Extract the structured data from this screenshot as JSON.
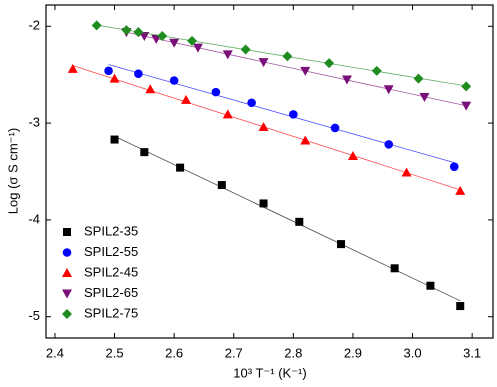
{
  "chart_data": {
    "type": "scatter",
    "xlabel": "10³ T⁻¹ (K⁻¹)",
    "ylabel": "Log (σ S cm⁻¹)",
    "xlim": [
      2.385,
      3.135
    ],
    "xticks": [
      2.4,
      2.5,
      2.6,
      2.7,
      2.8,
      2.9,
      {
        "value": 3.0,
        "label": "3.0"
      },
      3.1
    ],
    "ylim": [
      -5.22,
      -1.78
    ],
    "yticks": [
      -2,
      -3,
      -4,
      -5
    ],
    "legend": "lower left",
    "series": [
      {
        "name": "SPIL2-35",
        "color": "#000000",
        "marker": "square",
        "x": [
          2.5,
          2.55,
          2.61,
          2.68,
          2.75,
          2.81,
          2.88,
          2.97,
          3.03,
          3.08
        ],
        "values": [
          -3.17,
          -3.3,
          -3.46,
          -3.64,
          -3.83,
          -4.02,
          -4.25,
          -4.5,
          -4.68,
          -4.89
        ]
      },
      {
        "name": "SPIL2-55",
        "color": "#0000ff",
        "marker": "circle",
        "x": [
          2.49,
          2.54,
          2.6,
          2.67,
          2.73,
          2.8,
          2.87,
          2.96,
          3.07
        ],
        "values": [
          -2.46,
          -2.49,
          -2.56,
          -2.68,
          -2.79,
          -2.91,
          -3.05,
          -3.22,
          -3.45
        ]
      },
      {
        "name": "SPIL2-45",
        "color": "#ff0000",
        "marker": "triangle-up",
        "x": [
          2.43,
          2.5,
          2.56,
          2.62,
          2.69,
          2.75,
          2.82,
          2.9,
          2.99,
          3.08
        ],
        "values": [
          -2.44,
          -2.54,
          -2.65,
          -2.76,
          -2.91,
          -3.04,
          -3.18,
          -3.34,
          -3.51,
          -3.7
        ]
      },
      {
        "name": "SPIL2-65",
        "color": "#7a0f7a",
        "marker": "triangle-down",
        "x": [
          2.52,
          2.55,
          2.57,
          2.6,
          2.64,
          2.69,
          2.75,
          2.82,
          2.89,
          2.96,
          3.02,
          3.09
        ],
        "values": [
          -2.06,
          -2.1,
          -2.13,
          -2.17,
          -2.22,
          -2.29,
          -2.37,
          -2.46,
          -2.55,
          -2.65,
          -2.73,
          -2.82
        ]
      },
      {
        "name": "SPIL2-75",
        "color": "#1f8c1f",
        "marker": "diamond",
        "x": [
          2.47,
          2.52,
          2.54,
          2.58,
          2.63,
          2.72,
          2.79,
          2.86,
          2.94,
          3.01,
          3.09
        ],
        "values": [
          -1.99,
          -2.04,
          -2.06,
          -2.1,
          -2.15,
          -2.24,
          -2.31,
          -2.38,
          -2.46,
          -2.54,
          -2.62
        ]
      }
    ]
  }
}
